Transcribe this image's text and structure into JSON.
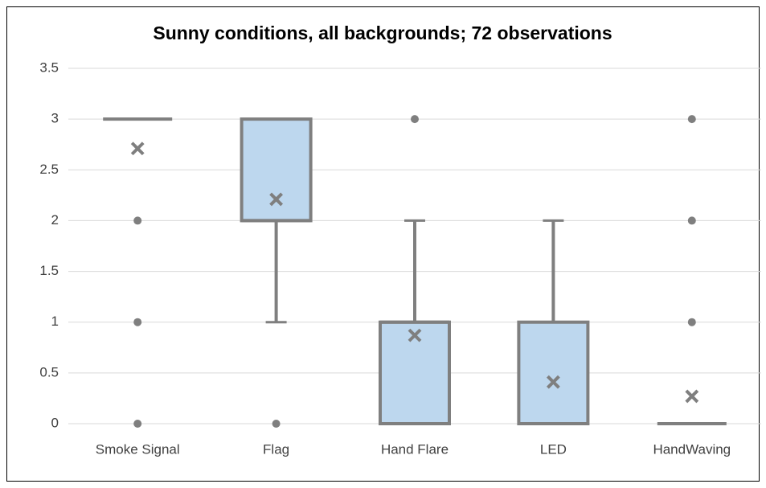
{
  "chart_data": {
    "type": "box",
    "title": "Sunny conditions, all backgrounds; 72 observations",
    "categories": [
      "Smoke Signal",
      "Flag",
      "Hand Flare",
      "LED",
      "HandWaving"
    ],
    "boxes": [
      {
        "min": 3,
        "q1": 3,
        "median": 3,
        "q3": 3,
        "max": 3,
        "mean": 2.71,
        "outliers": [
          2,
          1,
          0
        ]
      },
      {
        "min": 1,
        "q1": 2,
        "median": 2,
        "q3": 3,
        "max": 3,
        "mean": 2.21,
        "outliers": [
          0
        ]
      },
      {
        "min": 0,
        "q1": 0,
        "median": 1,
        "q3": 1,
        "max": 2,
        "mean": 0.87,
        "outliers": [
          3
        ]
      },
      {
        "min": 0,
        "q1": 0,
        "median": 0,
        "q3": 1,
        "max": 2,
        "mean": 0.41,
        "outliers": []
      },
      {
        "min": 0,
        "q1": 0,
        "median": 0,
        "q3": 0,
        "max": 0,
        "mean": 0.27,
        "outliers": [
          3,
          2,
          1
        ]
      }
    ],
    "color": "#bdd7ee",
    "line_color": "#7f7f7f",
    "ylim": [
      0,
      3.5
    ],
    "yticks": [
      0,
      0.5,
      1,
      1.5,
      2,
      2.5,
      3,
      3.5
    ],
    "grid": true
  }
}
